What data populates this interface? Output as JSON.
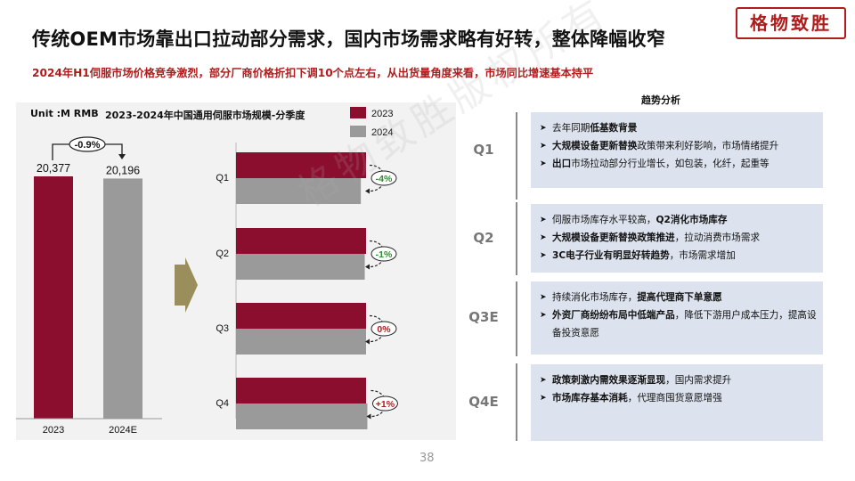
{
  "title": "传统OEM市场靠出口拉动部分需求，国内市场需求略有好转，整体降幅收窄",
  "subtitle": "2024年H1伺服市场价格竞争激烈，部分厂商价格折扣下调10个点左右，从出货量角度来看，市场同比增速基本持平",
  "logo": "格物致胜",
  "watermark": "格物致胜版权所有",
  "page_number": "38",
  "colors": {
    "y2023": "#8b0e2e",
    "y2024": "#9a9a9a",
    "accent_red": "#b01c1c",
    "accent_green": "#2e8b2e",
    "box_bg": "#dde3ee"
  },
  "chart_data": [
    {
      "type": "bar",
      "unit_label": "Unit :M RMB",
      "categories": [
        "2023",
        "2024E"
      ],
      "values": [
        20377,
        20196
      ],
      "value_labels": [
        "20,377",
        "20,196"
      ],
      "change_label": "-0.9%"
    },
    {
      "type": "bar",
      "orientation": "horizontal",
      "title": "2023-2024年中国通用伺服市场规模-分季度",
      "categories": [
        "Q1",
        "Q2",
        "Q3",
        "Q4"
      ],
      "series": [
        {
          "name": "2023",
          "values": [
            100,
            100,
            100,
            100
          ]
        },
        {
          "name": "2024",
          "values": [
            96,
            99,
            100,
            101
          ]
        }
      ],
      "changes": [
        "-4%",
        "-1%",
        "0%",
        "+1%"
      ],
      "change_colors": [
        "#2e8b2e",
        "#2e8b2e",
        "#b01c1c",
        "#b01c1c"
      ],
      "legend_placement": "top-right"
    }
  ],
  "trend": {
    "header": "趋势分析",
    "quarters": [
      {
        "label": "Q1",
        "bullets": [
          [
            {
              "t": "去年同期",
              "b": false
            },
            {
              "t": "低基数背景",
              "b": true
            }
          ],
          [
            {
              "t": "大规模设备更新替换",
              "b": true
            },
            {
              "t": "政策带来利好影响，市场情绪提升",
              "b": false
            }
          ],
          [
            {
              "t": "出口",
              "b": true
            },
            {
              "t": "市场拉动部分行业增长，如包装，化纤，起重等",
              "b": false
            }
          ]
        ]
      },
      {
        "label": "Q2",
        "bullets": [
          [
            {
              "t": "伺服市场库存水平较高，",
              "b": false
            },
            {
              "t": "Q2消化市场库存",
              "b": true
            }
          ],
          [
            {
              "t": "大规模设备更新替换政策推进",
              "b": true
            },
            {
              "t": "，拉动消费市场需求",
              "b": false
            }
          ],
          [
            {
              "t": "3C电子行业有明显好转趋势",
              "b": true
            },
            {
              "t": "，市场需求增加",
              "b": false
            }
          ]
        ]
      },
      {
        "label": "Q3E",
        "bullets": [
          [
            {
              "t": "持续消化市场库存，",
              "b": false
            },
            {
              "t": "提高代理商下单意愿",
              "b": true
            }
          ],
          [
            {
              "t": "外资厂商纷纷布局中低端产品",
              "b": true
            },
            {
              "t": "，降低下游用户成本压力，提高设备投资意愿",
              "b": false
            }
          ]
        ]
      },
      {
        "label": "Q4E",
        "bullets": [
          [
            {
              "t": "政策刺激内需效果逐渐显现",
              "b": true
            },
            {
              "t": "，国内需求提升",
              "b": false
            }
          ],
          [
            {
              "t": "市场库存基本消耗",
              "b": true
            },
            {
              "t": "，代理商囤货意愿增强",
              "b": false
            }
          ]
        ]
      }
    ]
  }
}
